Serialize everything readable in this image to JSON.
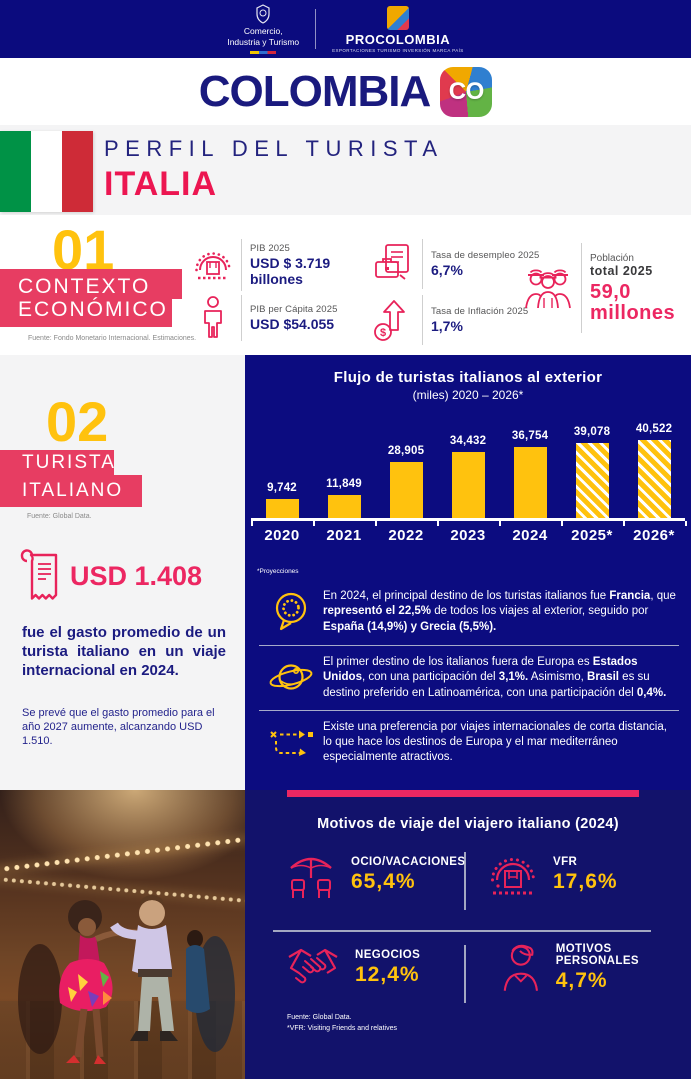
{
  "header": {
    "gov_line1": "Comercio,",
    "gov_line2": "Industria y Turismo",
    "procolombia_name": "PROCOLOMBIA",
    "procolombia_tagline": "EXPORTACIONES TURISMO INVERSIÓN MARCA PAÍS"
  },
  "brand": {
    "wordmark": "COLOMBIA",
    "co": "CO"
  },
  "title": {
    "kicker": "PERFIL DEL TURISTA",
    "country": "ITALIA"
  },
  "economy": {
    "number": "01",
    "heading_line1": "CONTEXTO",
    "heading_line2": "ECONÓMICO",
    "source": "Fuente: Fondo Monetario Internacional. Estimaciones.",
    "stats": [
      {
        "icon": "industry-icon",
        "label": "PIB 2025",
        "value_line1": "USD $ 3.719",
        "value_line2": "billones"
      },
      {
        "icon": "person-icon",
        "label": "PIB per Cápita 2025",
        "value_line1": "USD $54.055",
        "value_line2": ""
      },
      {
        "icon": "briefcase-document-icon",
        "label": "Tasa de desempleo 2025",
        "value_line1": "6,7%",
        "value_line2": ""
      },
      {
        "icon": "inflation-arrow-icon",
        "label": "Tasa de Inflación 2025",
        "value_line1": "1,7%",
        "value_line2": ""
      }
    ],
    "population": {
      "label_light": "Población",
      "label_bold": "total 2025",
      "value_line1": "59,0",
      "value_line2": "millones"
    }
  },
  "tourist": {
    "number": "02",
    "heading_line1": "TURISTA",
    "heading_line2": "ITALIANO",
    "source": "Fuente: Global Data.",
    "spend_value": "USD 1.408",
    "spend_text": "fue el gasto promedio de un turista italiano en un viaje internacional en 2024.",
    "spend_note": "Se prevé que el gasto promedio para el año 2027 aumente, alcanzando USD 1.510."
  },
  "chart_data": {
    "type": "bar",
    "title": "Flujo de turistas italianos al exterior",
    "subtitle": "(miles) 2020 – 2026*",
    "categories": [
      "2020",
      "2021",
      "2022",
      "2023",
      "2024",
      "2025*",
      "2026*"
    ],
    "values": [
      9742,
      11849,
      28905,
      34432,
      36754,
      39078,
      40522
    ],
    "value_labels": [
      "9,742",
      "11,849",
      "28,905",
      "34,432",
      "36,754",
      "39,078",
      "40,522"
    ],
    "projected": [
      false,
      false,
      false,
      false,
      false,
      true,
      true
    ],
    "bar_color": "#FFC20E",
    "projected_style": "hatched",
    "xlabel": "",
    "ylabel": "",
    "ylim": [
      0,
      42000
    ],
    "grid": false,
    "legend": false
  },
  "projections_note": "*Proyecciones",
  "facts": [
    {
      "icon": "eu-speech-bubble-icon",
      "text": "En 2024, el principal destino de los turistas italianos fue **Francia**, que **representó el 22,5%** de todos los viajes al exterior, seguido por **España (14,9%) y Grecia (5,5%).**"
    },
    {
      "icon": "globe-orbit-icon",
      "text": "El primer destino de los italianos fuera de Europa es **Estados Unidos**, con una participación del **3,1%.** Asimismo, **Brasil** es su destino preferido en Latinoamérica, con una participación del **0,4%.**"
    },
    {
      "icon": "short-route-icon",
      "text": "Existe una preferencia por viajes internacionales de corta distancia, lo que hace los destinos de Europa y el mar mediterráneo especialmente atractivos."
    }
  ],
  "motives": {
    "title": "Motivos de viaje del viajero italiano (2024)",
    "items": [
      {
        "icon": "beach-umbrella-icon",
        "label": "OCIO/VACACIONES",
        "value": "65,4%"
      },
      {
        "icon": "gear-house-icon",
        "label": "VFR",
        "value": "17,6%"
      },
      {
        "icon": "handshake-icon",
        "label": "NEGOCIOS",
        "value": "12,4%"
      },
      {
        "icon": "person-bust-icon",
        "label": "MOTIVOS PERSONALES",
        "value": "4,7%"
      }
    ],
    "footnote_line1": "Fuente: Global Data.",
    "footnote_line2": "*VFR: Visiting Friends and relatives"
  },
  "colors": {
    "navy": "#0C0C80",
    "navy_dark": "#12126B",
    "crimson": "#E73D62",
    "red_title": "#EC1651",
    "yellow": "#FFC20E",
    "gray_bg": "#F4F4F5"
  }
}
